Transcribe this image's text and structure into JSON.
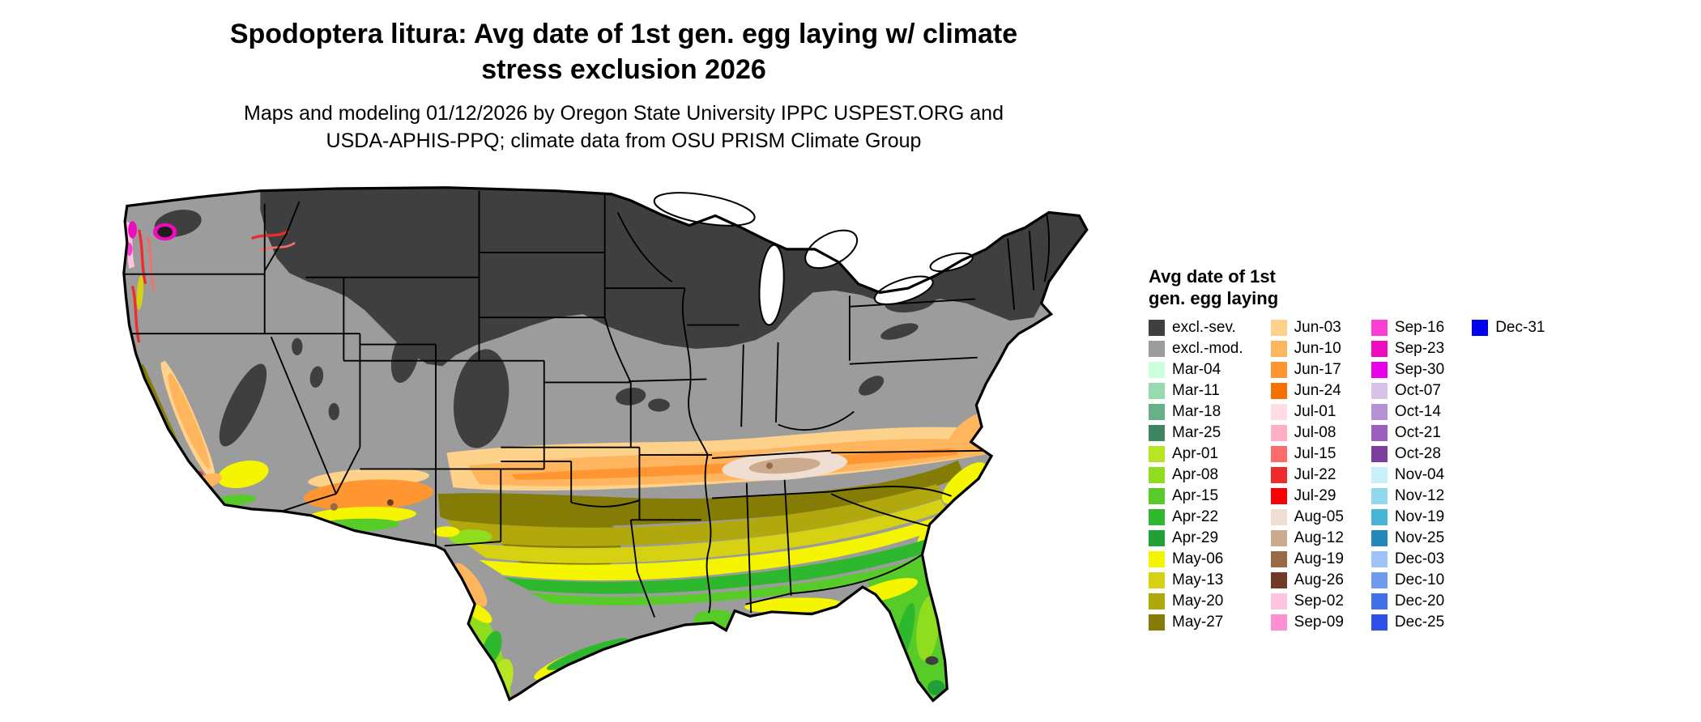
{
  "title": {
    "line1": "Spodoptera litura: Avg date of 1st gen. egg laying w/ climate",
    "line2": "stress exclusion 2026"
  },
  "subtitle": {
    "line1": "Maps and modeling 01/12/2026 by Oregon State University IPPC USPEST.ORG and",
    "line2": "USDA-APHIS-PPQ; climate data from OSU PRISM Climate Group"
  },
  "legend": {
    "title_line1": "Avg date of 1st",
    "title_line2": "gen. egg laying",
    "columns": [
      {
        "entries": [
          "excl.-sev.",
          "excl.-mod.",
          "Mar-04",
          "Mar-11",
          "Mar-18",
          "Mar-25",
          "Apr-01",
          "Apr-08",
          "Apr-15",
          "Apr-22",
          "Apr-29",
          "May-06",
          "May-13",
          "May-20",
          "May-27"
        ]
      },
      {
        "entries": [
          "Jun-03",
          "Jun-10",
          "Jun-17",
          "Jun-24",
          "Jul-01",
          "Jul-08",
          "Jul-15",
          "Jul-22",
          "Jul-29",
          "Aug-05",
          "Aug-12",
          "Aug-19",
          "Aug-26",
          "Sep-02",
          "Sep-09"
        ]
      },
      {
        "entries": [
          "Sep-16",
          "Sep-23",
          "Sep-30",
          "Oct-07",
          "Oct-14",
          "Oct-21",
          "Oct-28",
          "Nov-04",
          "Nov-12",
          "Nov-19",
          "Nov-25",
          "Dec-03",
          "Dec-10",
          "Dec-20",
          "Dec-25"
        ]
      },
      {
        "entries": [
          "Dec-31"
        ]
      }
    ]
  },
  "palette": {
    "excl.-sev.": "#3f3f3f",
    "excl.-mod.": "#9c9c9c",
    "Mar-04": "#ccffdd",
    "Mar-11": "#99dbb0",
    "Mar-18": "#68b087",
    "Mar-25": "#3d8560",
    "Apr-01": "#b5e523",
    "Apr-08": "#8fdd1e",
    "Apr-15": "#57cc29",
    "Apr-22": "#2eb82e",
    "Apr-29": "#22a038",
    "May-06": "#f5f500",
    "May-13": "#d6d112",
    "May-20": "#b0a80c",
    "May-27": "#847c04",
    "Jun-03": "#ffd28c",
    "Jun-10": "#ffb55e",
    "Jun-17": "#ff9632",
    "Jun-24": "#f57200",
    "Jul-01": "#ffdbe4",
    "Jul-08": "#ffaec4",
    "Jul-15": "#fb6b6b",
    "Jul-22": "#ee2c2c",
    "Jul-29": "#fb0000",
    "Aug-05": "#f0ded2",
    "Aug-12": "#cbaa8e",
    "Aug-19": "#9a6a48",
    "Aug-26": "#703a26",
    "Sep-02": "#ffc4e0",
    "Sep-09": "#ff8fd0",
    "Sep-16": "#fb3ed1",
    "Sep-23": "#ef0bbd",
    "Sep-30": "#e800e8",
    "Oct-07": "#d8c2e8",
    "Oct-14": "#b691d6",
    "Oct-21": "#9b5fc0",
    "Oct-28": "#7c3f9e",
    "Nov-04": "#c8f0fa",
    "Nov-12": "#8fd8ee",
    "Nov-19": "#47b4d8",
    "Nov-25": "#2388b8",
    "Dec-03": "#9fc2f7",
    "Dec-10": "#6f9bef",
    "Dec-20": "#4070e8",
    "Dec-25": "#2f50e8",
    "Dec-31": "#0000f0"
  },
  "map": {
    "outline_color": "#000000",
    "lake_fill": "#ffffff",
    "puget_dark": "#1c1c1c"
  }
}
